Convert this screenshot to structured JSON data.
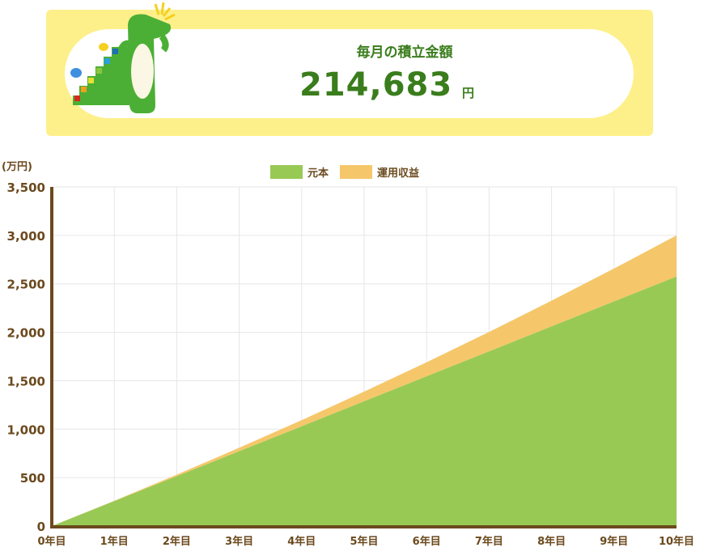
{
  "header": {
    "label": "毎月の積立金額",
    "amount": "214,683",
    "unit": "円"
  },
  "chart_data": {
    "type": "area",
    "stacked": true,
    "unit_label": "(万円)",
    "categories": [
      "0年目",
      "1年目",
      "2年目",
      "3年目",
      "4年目",
      "5年目",
      "6年目",
      "7年目",
      "8年目",
      "9年目",
      "10年目"
    ],
    "series": [
      {
        "name": "元本",
        "color": "#98c955",
        "values": [
          0,
          258,
          515,
          773,
          1030,
          1288,
          1546,
          1803,
          2061,
          2319,
          2576
        ]
      },
      {
        "name": "運用収益",
        "color": "#f5c76a",
        "values": [
          0,
          3,
          15,
          35,
          63,
          100,
          145,
          201,
          265,
          339,
          424
        ]
      }
    ],
    "ylim": [
      0,
      3500
    ],
    "yticks": [
      "0",
      "500",
      "1,000",
      "1,500",
      "2,000",
      "2,500",
      "3,000",
      "3,500"
    ],
    "grid": true,
    "legend_position": "top-center",
    "colors": {
      "axis": "#6b4a1e",
      "grid": "#e6e6e6"
    }
  }
}
